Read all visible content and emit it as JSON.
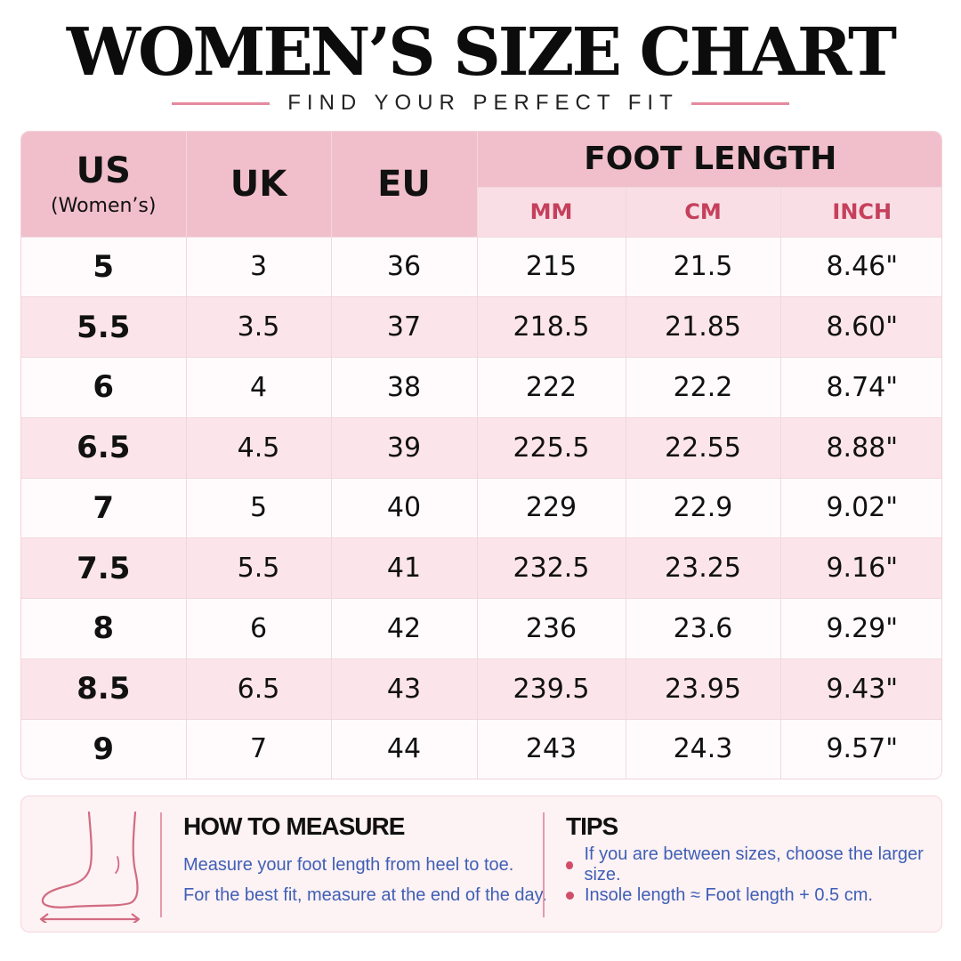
{
  "header": {
    "title": "WOMEN’S SIZE CHART",
    "subtitle": "FIND YOUR PERFECT FIT"
  },
  "table": {
    "columns": {
      "us": "US",
      "us_sub": "(Women’s)",
      "uk": "UK",
      "eu": "EU",
      "foot_length": "FOOT LENGTH",
      "mm": "MM",
      "cm": "CM",
      "inch": "INCH"
    },
    "rows": [
      {
        "us": "5",
        "uk": "3",
        "eu": "36",
        "mm": "215",
        "cm": "21.5",
        "inch": "8.46\""
      },
      {
        "us": "5.5",
        "uk": "3.5",
        "eu": "37",
        "mm": "218.5",
        "cm": "21.85",
        "inch": "8.60\""
      },
      {
        "us": "6",
        "uk": "4",
        "eu": "38",
        "mm": "222",
        "cm": "22.2",
        "inch": "8.74\""
      },
      {
        "us": "6.5",
        "uk": "4.5",
        "eu": "39",
        "mm": "225.5",
        "cm": "22.55",
        "inch": "8.88\""
      },
      {
        "us": "7",
        "uk": "5",
        "eu": "40",
        "mm": "229",
        "cm": "22.9",
        "inch": "9.02\""
      },
      {
        "us": "7.5",
        "uk": "5.5",
        "eu": "41",
        "mm": "232.5",
        "cm": "23.25",
        "inch": "9.16\""
      },
      {
        "us": "8",
        "uk": "6",
        "eu": "42",
        "mm": "236",
        "cm": "23.6",
        "inch": "9.29\""
      },
      {
        "us": "8.5",
        "uk": "6.5",
        "eu": "43",
        "mm": "239.5",
        "cm": "23.95",
        "inch": "9.43\""
      },
      {
        "us": "9",
        "uk": "7",
        "eu": "44",
        "mm": "243",
        "cm": "24.3",
        "inch": "9.57\""
      }
    ]
  },
  "how_to_measure": {
    "icon": "foot-measure-icon",
    "title": "HOW TO MEASURE",
    "lines": [
      "Measure your foot length from heel to toe.",
      "For the best fit, measure at the end of the day."
    ]
  },
  "tips": {
    "title": "TIPS",
    "items": [
      "If you are between sizes, choose the larger size.",
      "Insole length ≈ Foot length + 0.5 cm."
    ]
  },
  "colors": {
    "header_pink": "#f1bfcb",
    "unit_pink": "#f9dfe5",
    "accent_red": "#c5405c",
    "body_blue": "#3f5fb5"
  }
}
